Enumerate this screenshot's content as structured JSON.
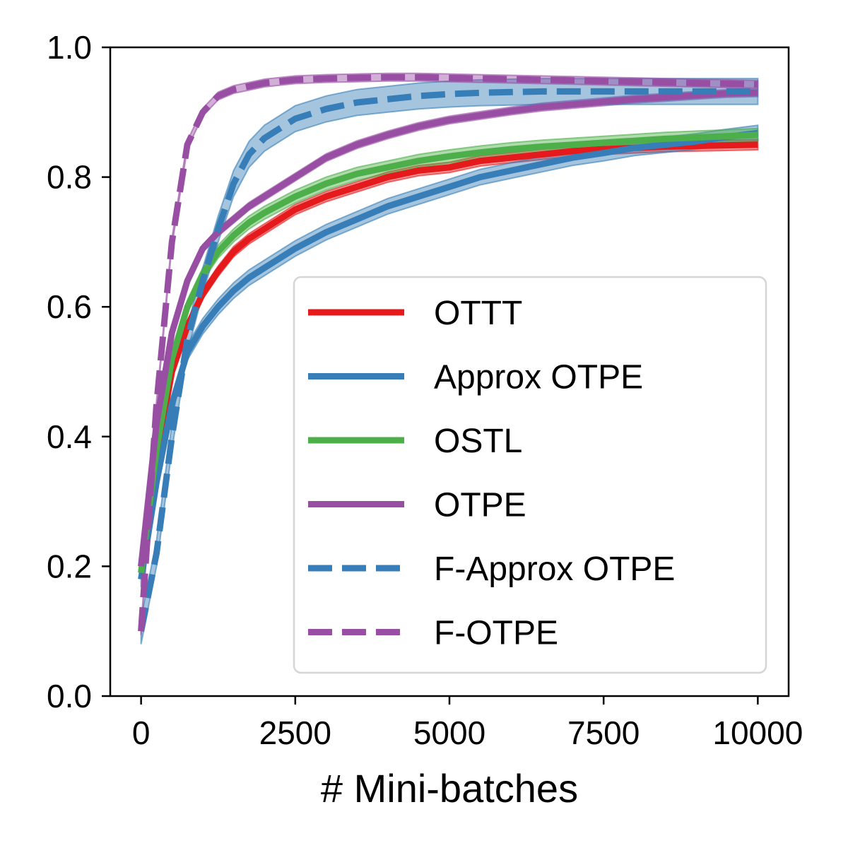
{
  "chart_data": {
    "type": "line",
    "title": "",
    "xlabel": "# Mini-batches",
    "ylabel": "",
    "xlim": [
      -500,
      10500
    ],
    "ylim": [
      0.0,
      1.0
    ],
    "xticks": [
      0,
      2500,
      5000,
      7500,
      10000
    ],
    "xtick_labels": [
      "0",
      "2500",
      "5000",
      "7500",
      "10000"
    ],
    "yticks": [
      0.0,
      0.2,
      0.4,
      0.6,
      0.8,
      1.0
    ],
    "ytick_labels": [
      "0.0",
      "0.2",
      "0.4",
      "0.6",
      "0.8",
      "1.0"
    ],
    "grid": false,
    "legend_position": "lower-right",
    "x": [
      0,
      250,
      500,
      750,
      1000,
      1250,
      1500,
      1750,
      2000,
      2500,
      3000,
      3500,
      4000,
      4500,
      5000,
      5500,
      6000,
      6500,
      7000,
      7500,
      8000,
      8500,
      9000,
      9500,
      10000
    ],
    "series": [
      {
        "name": "OTTT",
        "color": "#e41a1c",
        "dash": "solid",
        "values": [
          0.2,
          0.37,
          0.5,
          0.57,
          0.62,
          0.655,
          0.685,
          0.705,
          0.72,
          0.75,
          0.77,
          0.785,
          0.8,
          0.81,
          0.815,
          0.825,
          0.83,
          0.835,
          0.84,
          0.843,
          0.845,
          0.847,
          0.848,
          0.849,
          0.85
        ],
        "band": 0.008
      },
      {
        "name": "Approx OTPE",
        "color": "#377eb8",
        "dash": "solid",
        "values": [
          0.18,
          0.33,
          0.45,
          0.53,
          0.57,
          0.6,
          0.625,
          0.645,
          0.66,
          0.69,
          0.715,
          0.735,
          0.755,
          0.77,
          0.785,
          0.8,
          0.81,
          0.82,
          0.83,
          0.837,
          0.845,
          0.85,
          0.855,
          0.862,
          0.868
        ],
        "band": 0.012
      },
      {
        "name": "OSTL",
        "color": "#4daf4a",
        "dash": "solid",
        "values": [
          0.19,
          0.38,
          0.52,
          0.6,
          0.65,
          0.685,
          0.71,
          0.73,
          0.745,
          0.77,
          0.79,
          0.805,
          0.815,
          0.825,
          0.832,
          0.838,
          0.843,
          0.847,
          0.85,
          0.853,
          0.856,
          0.859,
          0.861,
          0.863,
          0.865
        ],
        "band": 0.01
      },
      {
        "name": "OTPE",
        "color": "#984ea3",
        "dash": "solid",
        "values": [
          0.2,
          0.42,
          0.56,
          0.64,
          0.69,
          0.715,
          0.735,
          0.755,
          0.77,
          0.8,
          0.83,
          0.85,
          0.865,
          0.878,
          0.888,
          0.895,
          0.902,
          0.908,
          0.912,
          0.916,
          0.92,
          0.923,
          0.926,
          0.929,
          0.93
        ],
        "band": 0.006
      },
      {
        "name": "F-Approx OTPE",
        "color": "#377eb8",
        "dash": "dashed",
        "values": [
          0.1,
          0.22,
          0.4,
          0.55,
          0.64,
          0.72,
          0.79,
          0.835,
          0.86,
          0.89,
          0.905,
          0.915,
          0.92,
          0.925,
          0.928,
          0.93,
          0.931,
          0.932,
          0.932,
          0.932,
          0.932,
          0.932,
          0.932,
          0.932,
          0.932
        ],
        "band": 0.02
      },
      {
        "name": "F-OTPE",
        "color": "#984ea3",
        "dash": "dashed",
        "values": [
          0.1,
          0.45,
          0.7,
          0.85,
          0.9,
          0.925,
          0.935,
          0.94,
          0.945,
          0.95,
          0.952,
          0.953,
          0.954,
          0.954,
          0.953,
          0.952,
          0.951,
          0.95,
          0.949,
          0.948,
          0.947,
          0.946,
          0.945,
          0.944,
          0.943
        ],
        "band": 0.006
      }
    ]
  }
}
